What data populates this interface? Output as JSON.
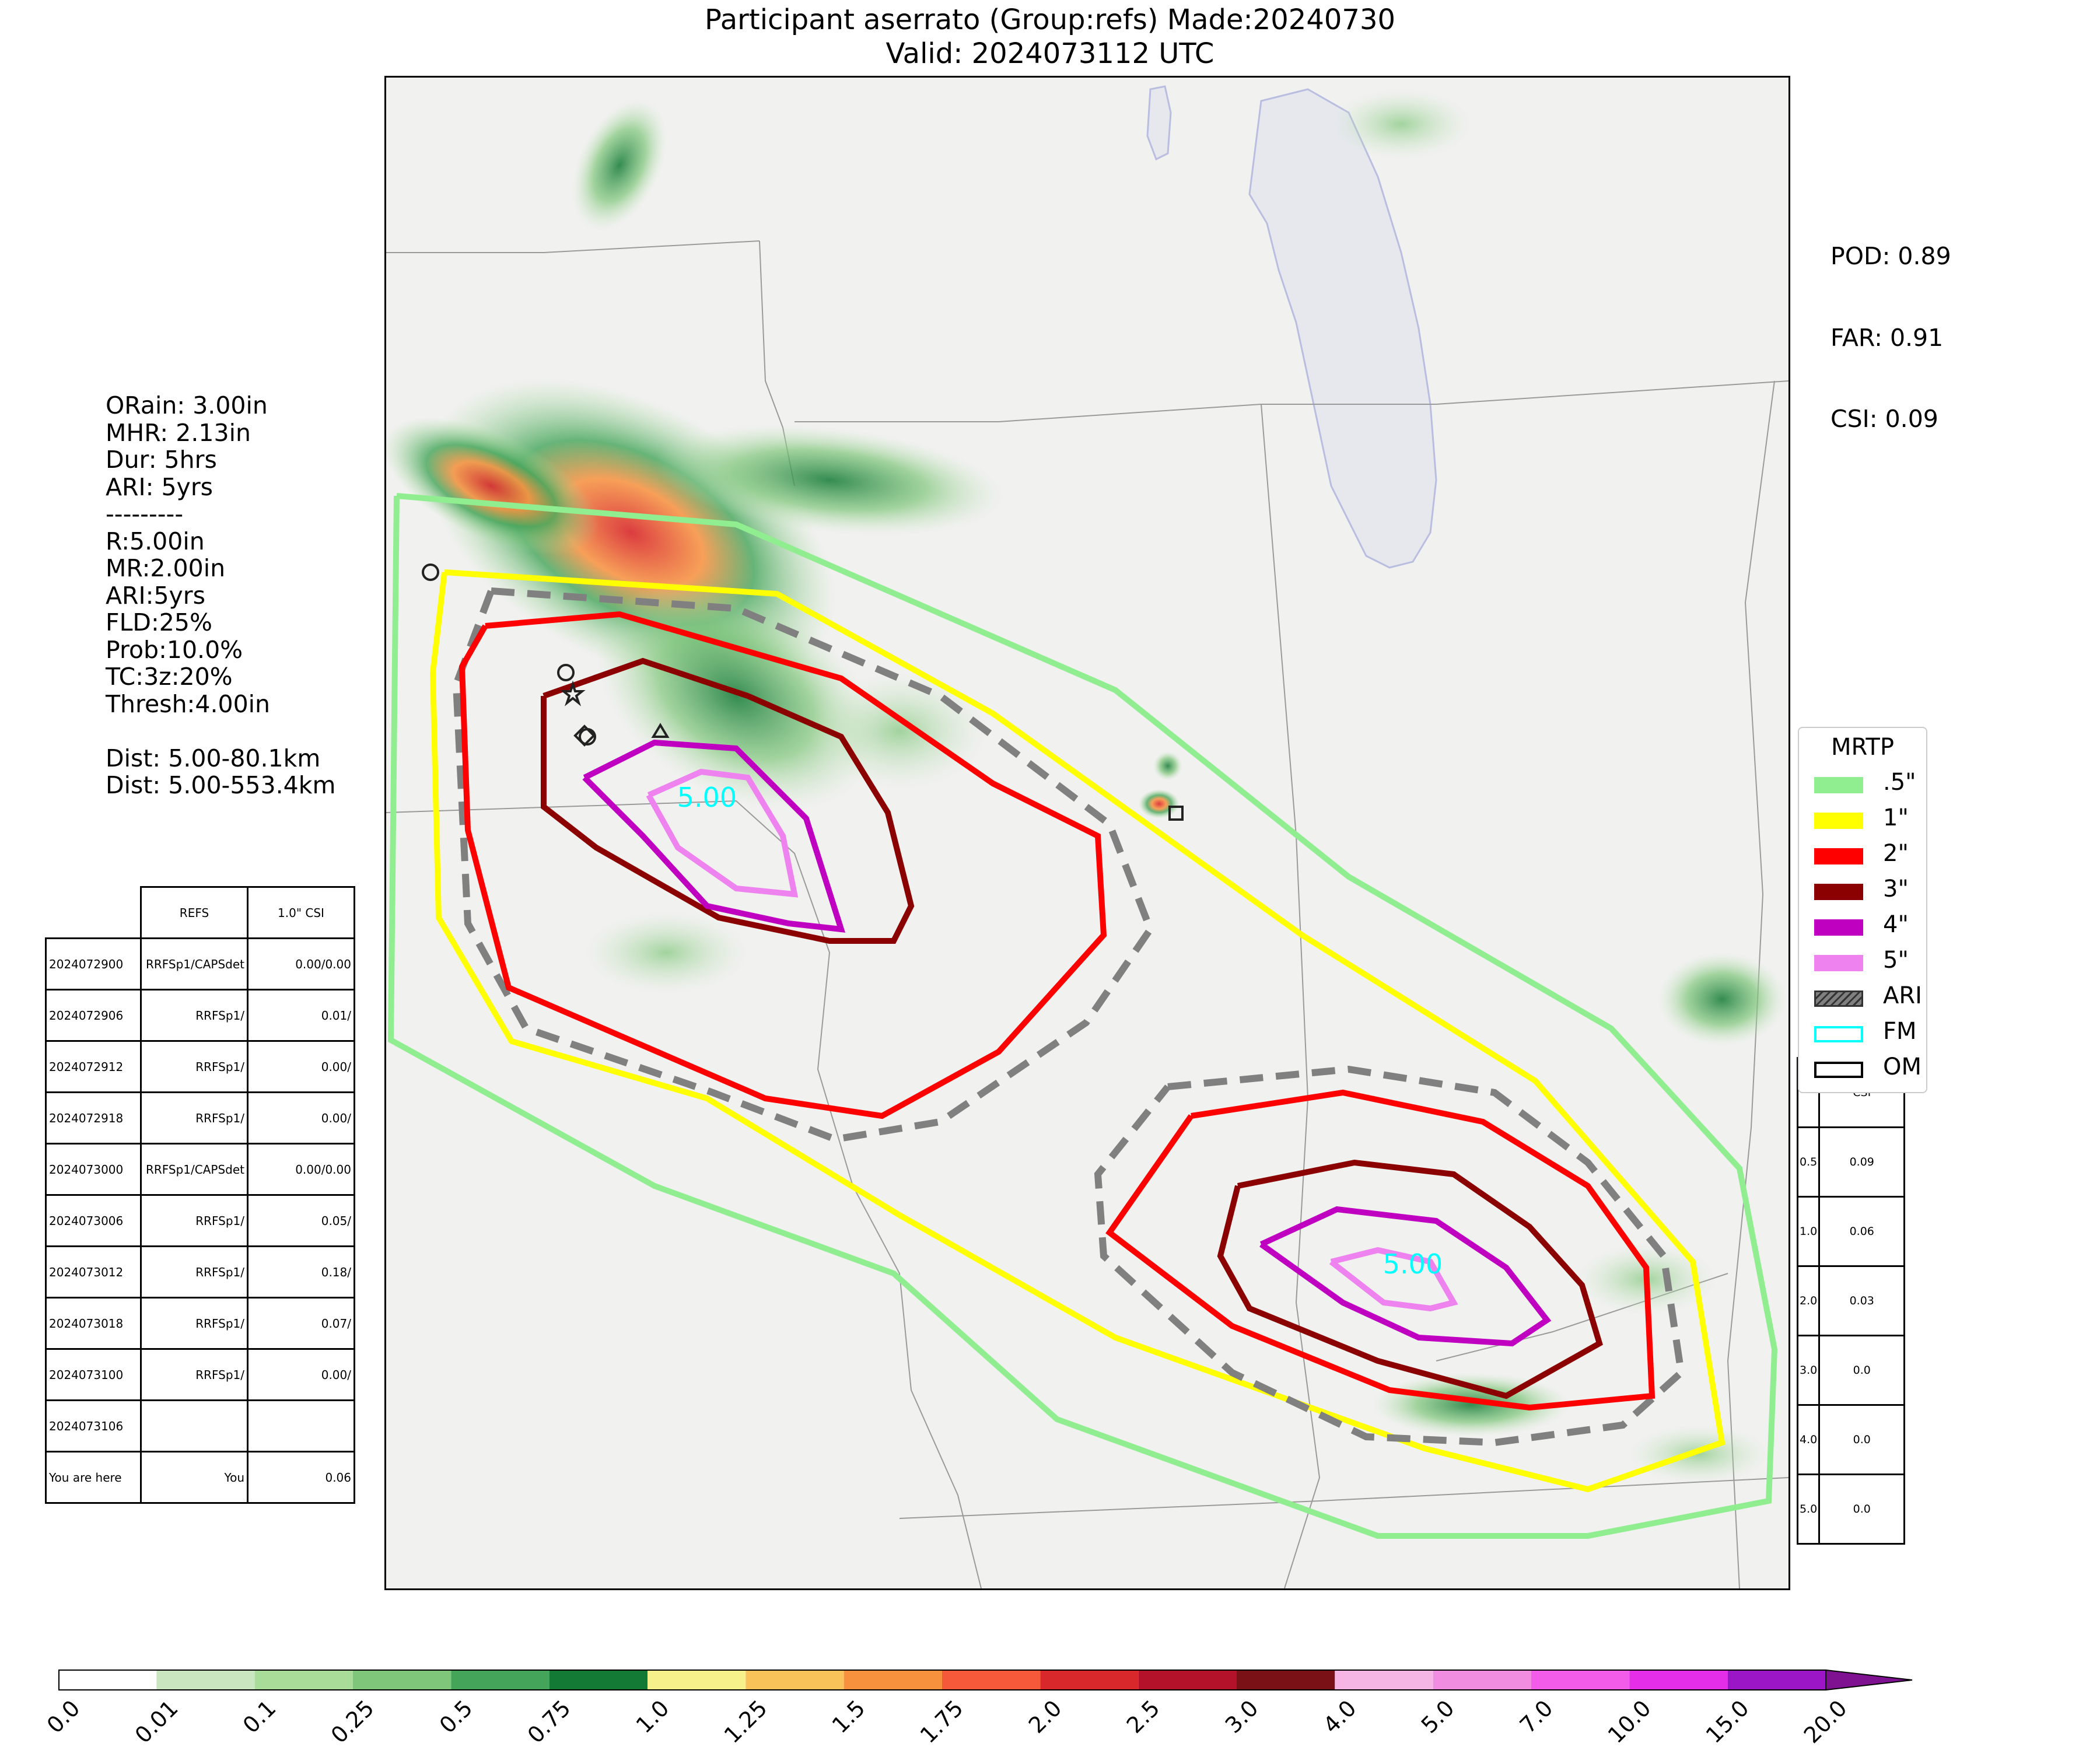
{
  "title": {
    "line1": "Participant aserrato (Group:refs) Made:20240730",
    "line2": "Valid: 2024073112 UTC"
  },
  "verification": {
    "pod": "POD: 0.89",
    "far": "FAR: 0.91",
    "csi": "CSI: 0.09"
  },
  "params": [
    "ORain: 3.00in",
    "MHR: 2.13in",
    "Dur: 5hrs",
    "ARI: 5yrs",
    "---------",
    "R:5.00in",
    "MR:2.00in",
    "ARI:5yrs",
    "FLD:25%",
    "Prob:10.0%",
    "TC:3z:20%",
    "Thresh:4.00in",
    "",
    "Dist: 5.00-80.1km",
    "Dist: 5.00-553.4km"
  ],
  "forecast_table": {
    "header": [
      "",
      "REFS",
      "1.0\" CSI"
    ],
    "rows": [
      [
        "2024072900",
        "RRFSp1/CAPSdet",
        "0.00/0.00"
      ],
      [
        "2024072906",
        "RRFSp1/",
        "0.01/"
      ],
      [
        "2024072912",
        "RRFSp1/",
        "0.00/"
      ],
      [
        "2024072918",
        "RRFSp1/",
        "0.00/"
      ],
      [
        "2024073000",
        "RRFSp1/CAPSdet",
        "0.00/0.00"
      ],
      [
        "2024073006",
        "RRFSp1/",
        "0.05/"
      ],
      [
        "2024073012",
        "RRFSp1/",
        "0.18/"
      ],
      [
        "2024073018",
        "RRFSp1/",
        "0.07/"
      ],
      [
        "2024073100",
        "RRFSp1/",
        "0.00/"
      ],
      [
        "2024073106",
        "",
        ""
      ],
      [
        "You are here",
        "You",
        "0.06"
      ]
    ]
  },
  "threshold_table": {
    "header": [
      "",
      "CSI"
    ],
    "rows": [
      [
        "0.5",
        "0.09"
      ],
      [
        "1.0",
        "0.06"
      ],
      [
        "2.0",
        "0.03"
      ],
      [
        "3.0",
        "0.0"
      ],
      [
        "4.0",
        "0.0"
      ],
      [
        "5.0",
        "0.0"
      ]
    ]
  },
  "legend": {
    "title": "MRTP",
    "items": [
      {
        "label": ".5\"",
        "color": "#90ee90",
        "kind": "fill"
      },
      {
        "label": "1\"",
        "color": "#ffff00",
        "kind": "fill"
      },
      {
        "label": "2\"",
        "color": "#ff0000",
        "kind": "fill"
      },
      {
        "label": "3\"",
        "color": "#8b0000",
        "kind": "fill"
      },
      {
        "label": "4\"",
        "color": "#c000c0",
        "kind": "fill"
      },
      {
        "label": "5\"",
        "color": "#ee82ee",
        "kind": "fill"
      },
      {
        "label": "ARI",
        "color": "#808080",
        "kind": "hatch"
      },
      {
        "label": "FM",
        "color": "#00ffff",
        "kind": "outline"
      },
      {
        "label": "OM",
        "color": "#000000",
        "kind": "outline"
      }
    ]
  },
  "contour_labels": {
    "nw_peak": "5.00",
    "se_peak": "5.00"
  },
  "colorbar": {
    "ticks": [
      "0.0",
      "0.01",
      "0.1",
      "0.25",
      "0.5",
      "0.75",
      "1.0",
      "1.25",
      "1.5",
      "1.75",
      "2.0",
      "2.5",
      "3.0",
      "4.0",
      "5.0",
      "7.0",
      "10.0",
      "15.0",
      "20.0"
    ],
    "colors": [
      "#ffffff",
      "#c9e6c0",
      "#a8dc98",
      "#7fc67a",
      "#44a55a",
      "#137a36",
      "#f7f18b",
      "#f9c35a",
      "#f8913e",
      "#f5593a",
      "#d9282c",
      "#b4122b",
      "#7a1116",
      "#f5b6e6",
      "#f08de0",
      "#f25ce9",
      "#e52ee8",
      "#9b16c6"
    ],
    "extend_color": "#7e1290"
  },
  "map": {
    "water_color": "#e6e8ee",
    "land_color": "#f1f1f0"
  }
}
